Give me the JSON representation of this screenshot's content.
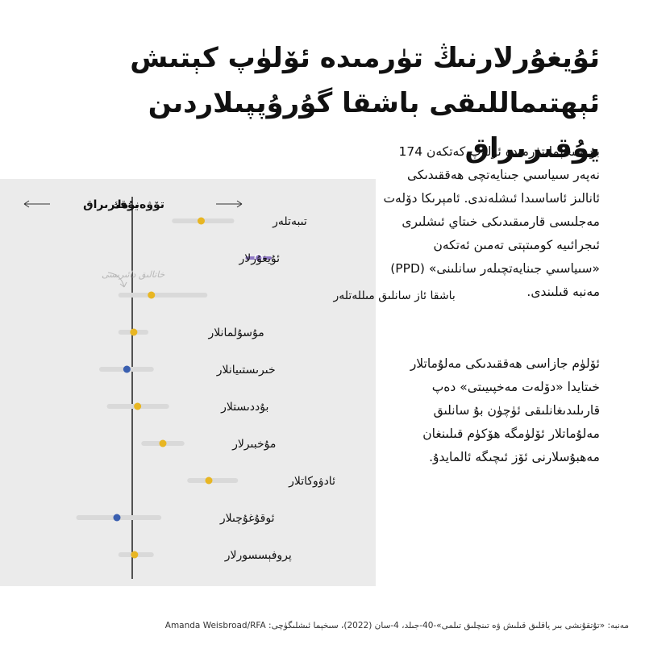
{
  "title": "ئۇيغۇرلارنىڭ تۈرمىدە ئۆلۈپ كېتىش ئېھتىماللىقى باشقا گۇرۇپپىلاردىن يۇقىرىراق",
  "description": [
    "بۇ سىخېما تۈرمىدە ئۆلۈپ كەتكەن 174 نەپەر سىياسىي جىنايەتچى ھەققىدىكى ئانالىز ئاساسىدا ئىشلەندى. ئامېرىكا دۆلەت مەجلىسى قارمىقىدىكى خىتاي ئىشلىرى ئىجرائىيە كومىتېتى تەمىن ئەتكەن «سىياسىي جىنايەتچىلەر سانلىنى» (PPD) مەنبە قىلىندى.",
    "ئۆلۈم جازاسى ھەققىدىكى مەلۇماتلار خىتايدا «دۆلەت مەخپىيىتى» دەپ قارىلىدىغانلىقى ئۈچۈن بۇ سانلىق مەلۇماتلار ئۆلۈمگە ھۆكۈم قىلىنغان مەھبۇسلارنى ئۆز ئىچىگە ئالمايدۇ."
  ],
  "source": "مەنبە: «تۇتقۇنشى بىر ياقلىق قىلىش ۋە تىنچلىق تىلمى»-40-جىلد، 4-سان (2022)، سىخېما ئىشلىگۈچى: Amanda Weisbroad/RFA",
  "colors": {
    "highlight": "#8f79c4",
    "higher": "#e8b623",
    "lower": "#3a5fb0",
    "range": "#d9d9d9",
    "baseline": "#111111",
    "panel": "#ebebeb"
  },
  "chart_data": {
    "type": "scatter",
    "subtype": "dot-with-range",
    "direction_labels": {
      "lower": "تۆۋەنرەك",
      "higher": "يۇقىرىراق"
    },
    "baseline_label": "خاتالىق دائىرىسى",
    "baseline_value": 0,
    "xlim": [
      -1.0,
      1.75
    ],
    "rows": [
      {
        "label": "تىبەتلەر",
        "value": 0.9,
        "low": 0.55,
        "high": 1.3,
        "color_key": "higher"
      },
      {
        "label": "ئۇيغۇرلار",
        "value": 1.65,
        "low": 1.5,
        "high": 1.8,
        "color_key": "highlight"
      },
      {
        "label": "باشقا ئاز سانلىق مىللەتلەر",
        "value": 0.25,
        "low": -0.15,
        "high": 0.95,
        "color_key": "higher"
      },
      {
        "label": "مۇسۇلمانلار",
        "value": 0.02,
        "low": -0.15,
        "high": 0.18,
        "color_key": "higher"
      },
      {
        "label": "خىرىستىيانلار",
        "value": -0.07,
        "low": -0.4,
        "high": 0.25,
        "color_key": "lower"
      },
      {
        "label": "بۇددىستلار",
        "value": 0.07,
        "low": -0.3,
        "high": 0.45,
        "color_key": "higher"
      },
      {
        "label": "مۇخبىرلار",
        "value": 0.4,
        "low": 0.15,
        "high": 0.65,
        "color_key": "higher"
      },
      {
        "label": "ئادۋوكاتلار",
        "value": 1.0,
        "low": 0.75,
        "high": 1.35,
        "color_key": "higher"
      },
      {
        "label": "ئوقۇغۇچىلار",
        "value": -0.2,
        "low": -0.7,
        "high": 0.35,
        "color_key": "lower"
      },
      {
        "label": "پروفېسسورلار",
        "value": 0.03,
        "low": -0.15,
        "high": 0.25,
        "color_key": "higher"
      }
    ]
  }
}
